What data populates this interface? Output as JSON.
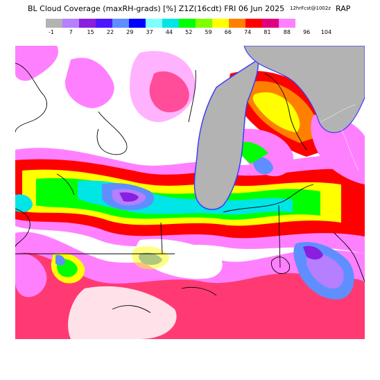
{
  "header": {
    "title": "BL Cloud Coverage (maxRH-grads) [%]  Z1Z(16cdt)  FRI 06 Jun 2025",
    "run_stamp": "12hrFcst@1002z",
    "model": "RAP"
  },
  "legend": {
    "labels": [
      "-1",
      "7",
      "15",
      "22",
      "29",
      "37",
      "44",
      "52",
      "59",
      "66",
      "74",
      "81",
      "88",
      "96",
      "104"
    ],
    "colors": [
      "#b3b3b3",
      "#b57fff",
      "#8a1fe0",
      "#4b17ff",
      "#5f8eff",
      "#0000ff",
      "#7fffff",
      "#00e5e5",
      "#00ff00",
      "#7fff00",
      "#ffff00",
      "#ff8000",
      "#ff0000",
      "#e0007f",
      "#ff80ff"
    ]
  },
  "map": {
    "lake_color": "#b3b3b3",
    "background_color": "#ffffff",
    "boundary_color": "#000000"
  }
}
